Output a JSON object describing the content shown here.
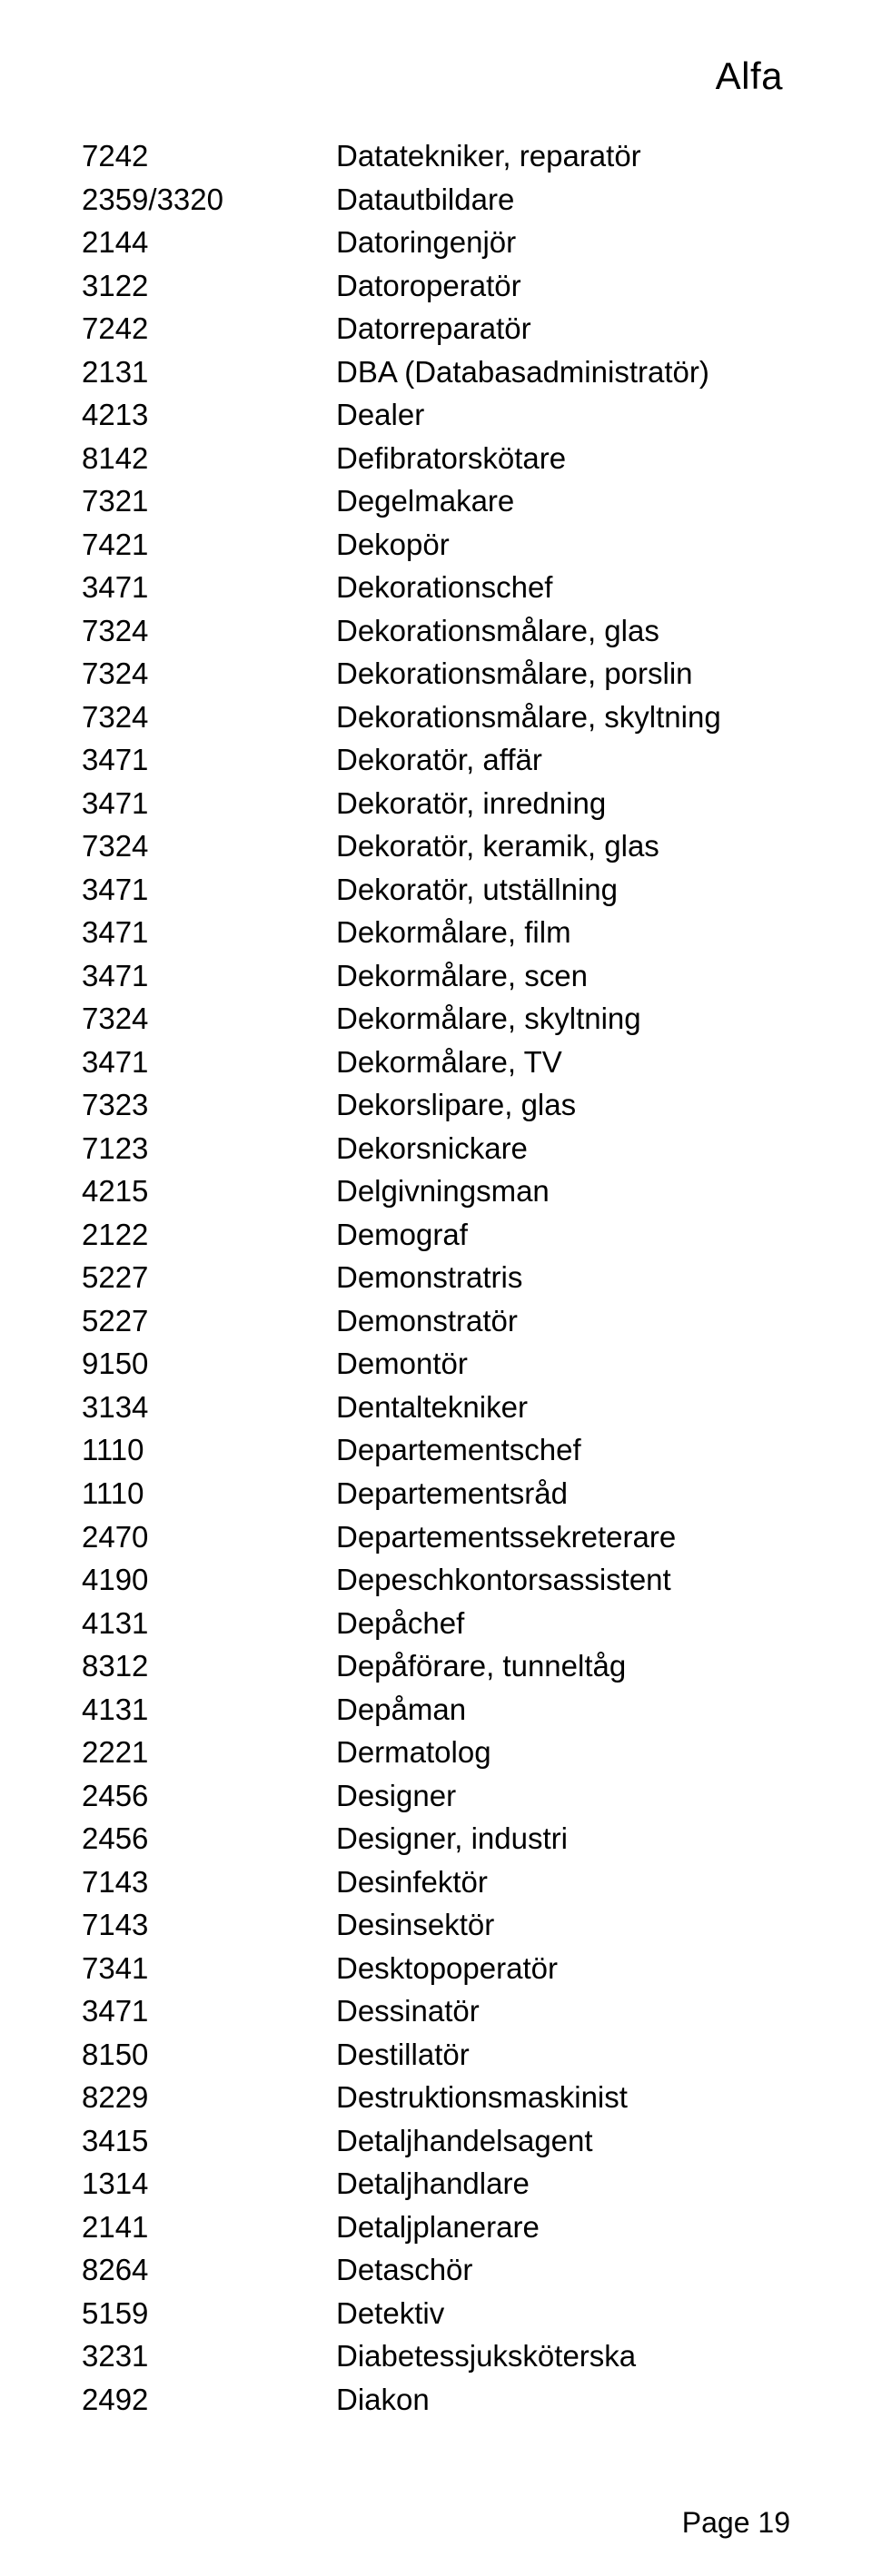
{
  "header": {
    "title": "Alfa"
  },
  "footer": {
    "text": "Page 19"
  },
  "list": {
    "rows": [
      {
        "code": "7242",
        "name": "Datatekniker, reparatör"
      },
      {
        "code": "2359/3320",
        "name": "Datautbildare"
      },
      {
        "code": "2144",
        "name": "Datoringenjör"
      },
      {
        "code": "3122",
        "name": "Datoroperatör"
      },
      {
        "code": "7242",
        "name": "Datorreparatör"
      },
      {
        "code": "2131",
        "name": "DBA (Databasadministratör)"
      },
      {
        "code": "4213",
        "name": "Dealer"
      },
      {
        "code": "8142",
        "name": "Defibratorskötare"
      },
      {
        "code": "7321",
        "name": "Degelmakare"
      },
      {
        "code": "7421",
        "name": "Dekopör"
      },
      {
        "code": "3471",
        "name": "Dekorationschef"
      },
      {
        "code": "7324",
        "name": "Dekorationsmålare, glas"
      },
      {
        "code": "7324",
        "name": "Dekorationsmålare, porslin"
      },
      {
        "code": "7324",
        "name": "Dekorationsmålare, skyltning"
      },
      {
        "code": "3471",
        "name": "Dekoratör, affär"
      },
      {
        "code": "3471",
        "name": "Dekoratör, inredning"
      },
      {
        "code": "7324",
        "name": "Dekoratör, keramik, glas"
      },
      {
        "code": "3471",
        "name": "Dekoratör, utställning"
      },
      {
        "code": "3471",
        "name": "Dekormålare, film"
      },
      {
        "code": "3471",
        "name": "Dekormålare, scen"
      },
      {
        "code": "7324",
        "name": "Dekormålare, skyltning"
      },
      {
        "code": "3471",
        "name": "Dekormålare, TV"
      },
      {
        "code": "7323",
        "name": "Dekorslipare, glas"
      },
      {
        "code": "7123",
        "name": "Dekorsnickare"
      },
      {
        "code": "4215",
        "name": "Delgivningsman"
      },
      {
        "code": "2122",
        "name": "Demograf"
      },
      {
        "code": "5227",
        "name": "Demonstratris"
      },
      {
        "code": "5227",
        "name": "Demonstratör"
      },
      {
        "code": "9150",
        "name": "Demontör"
      },
      {
        "code": "3134",
        "name": "Dentaltekniker"
      },
      {
        "code": "1110",
        "name": "Departementschef"
      },
      {
        "code": "1110",
        "name": "Departementsråd"
      },
      {
        "code": "2470",
        "name": "Departementssekreterare"
      },
      {
        "code": "4190",
        "name": "Depeschkontorsassistent"
      },
      {
        "code": "4131",
        "name": "Depåchef"
      },
      {
        "code": "8312",
        "name": "Depåförare, tunneltåg"
      },
      {
        "code": "4131",
        "name": "Depåman"
      },
      {
        "code": "2221",
        "name": "Dermatolog"
      },
      {
        "code": "2456",
        "name": "Designer"
      },
      {
        "code": "2456",
        "name": "Designer, industri"
      },
      {
        "code": "7143",
        "name": "Desinfektör"
      },
      {
        "code": "7143",
        "name": "Desinsektör"
      },
      {
        "code": "7341",
        "name": "Desktopoperatör"
      },
      {
        "code": "3471",
        "name": "Dessinatör"
      },
      {
        "code": "8150",
        "name": "Destillatör"
      },
      {
        "code": "8229",
        "name": "Destruktionsmaskinist"
      },
      {
        "code": "3415",
        "name": "Detaljhandelsagent"
      },
      {
        "code": "1314",
        "name": "Detaljhandlare"
      },
      {
        "code": "2141",
        "name": "Detaljplanerare"
      },
      {
        "code": "8264",
        "name": "Detaschör"
      },
      {
        "code": "5159",
        "name": "Detektiv"
      },
      {
        "code": "3231",
        "name": "Diabetessjuksköterska"
      },
      {
        "code": "2492",
        "name": "Diakon"
      }
    ]
  }
}
